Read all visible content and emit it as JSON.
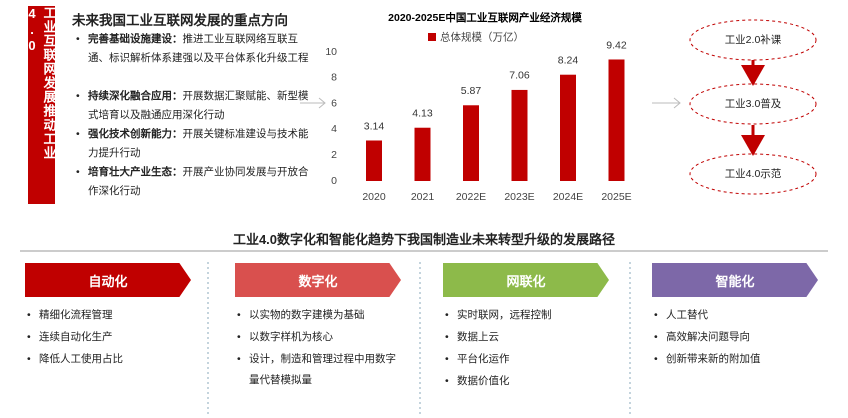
{
  "sidebar": "工业互联网发展推动工业4.0",
  "focus": {
    "title": "未来我国工业互联网发展的重点方向",
    "items": [
      {
        "label": "完善基础设施建设：",
        "text": "推进工业互联网络互联互通、标识解析体系建强以及平台体系化升级工程"
      },
      {
        "label": "持续深化融合应用：",
        "text": "开展数据汇聚赋能、新型模式培育以及融通应用深化行动"
      },
      {
        "label": "强化技术创新能力：",
        "text": "开展关键标准建设与技术能力提升行动"
      },
      {
        "label": "培育壮大产业生态：",
        "text": "开展产业协同发展与开放合作深化行动"
      }
    ]
  },
  "chart_data": {
    "type": "bar",
    "title": "2020-2025E中国工业互联网产业经济规模",
    "categories": [
      "2020",
      "2021",
      "2022E",
      "2023E",
      "2024E",
      "2025E"
    ],
    "series": [
      {
        "name": "总体规模（万亿）",
        "color": "#c00000",
        "values": [
          3.14,
          4.13,
          5.87,
          7.06,
          8.24,
          9.42
        ]
      }
    ],
    "ylim": [
      0,
      10
    ],
    "yticks": [
      0,
      2,
      4,
      6,
      8,
      10
    ],
    "grid": false
  },
  "flow": [
    "工业2.0补课",
    "工业3.0普及",
    "工业4.0示范"
  ],
  "subtitle": "工业4.0数字化和智能化趋势下我国制造业未来转型升级的发展路径",
  "columns": [
    {
      "title": "自动化",
      "items": [
        "精细化流程管理",
        "连续自动化生产",
        "降低人工使用占比"
      ]
    },
    {
      "title": "数字化",
      "items": [
        "以实物的数字建模为基础",
        "以数字样机为核心",
        "设计，制造和管理过程中用数字量代替模拟量"
      ]
    },
    {
      "title": "网联化",
      "items": [
        "实时联网，远程控制",
        "数据上云",
        "平台化运作",
        "数据价值化"
      ]
    },
    {
      "title": "智能化",
      "items": [
        "人工替代",
        "高效解决问题导向",
        "创新带来新的附加值"
      ]
    }
  ]
}
